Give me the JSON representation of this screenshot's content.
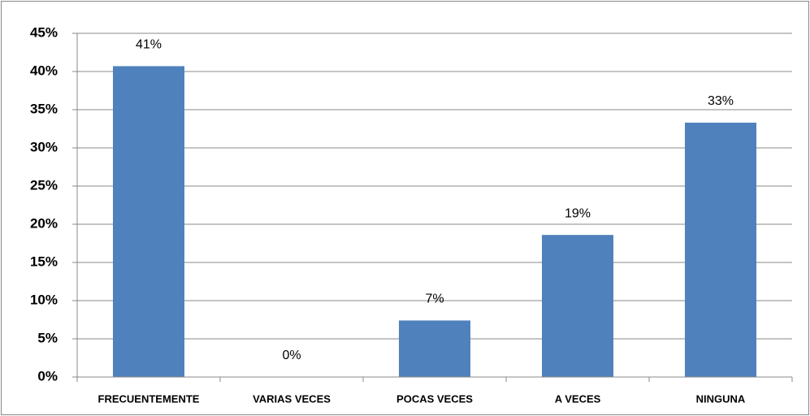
{
  "chart_data": {
    "type": "bar",
    "categories": [
      "FRECUENTEMENTE",
      "VARIAS VECES",
      "POCAS VECES",
      "A VECES",
      "NINGUNA"
    ],
    "values": [
      40.7,
      0,
      7.4,
      18.6,
      33.3
    ],
    "value_labels": [
      "41%",
      "0%",
      "7%",
      "19%",
      "33%"
    ],
    "color": "#4f81bd",
    "ylim": [
      0,
      45
    ],
    "yticks": [
      {
        "value": 0,
        "label": "0%"
      },
      {
        "value": 5,
        "label": "5%"
      },
      {
        "value": 10,
        "label": "10%"
      },
      {
        "value": 15,
        "label": "15%"
      },
      {
        "value": 20,
        "label": "20%"
      },
      {
        "value": 25,
        "label": "25%"
      },
      {
        "value": 30,
        "label": "30%"
      },
      {
        "value": 35,
        "label": "35%"
      },
      {
        "value": 40,
        "label": "40%"
      },
      {
        "value": 45,
        "label": "45%"
      }
    ],
    "grid": true
  }
}
